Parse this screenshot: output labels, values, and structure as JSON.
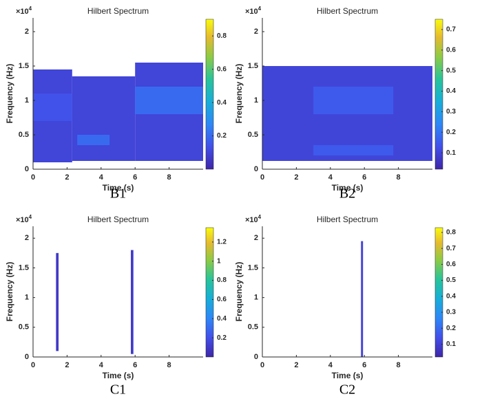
{
  "chart_data": [
    {
      "type": "spectrogram",
      "title": "Hilbert Spectrum",
      "panel_label": "B1",
      "xlabel": "Time (s)",
      "ylabel": "Frequency (Hz)",
      "y_multiplier": {
        "base": "×10",
        "exponent": "4"
      },
      "xlim": [
        0,
        10
      ],
      "xticks": [
        0,
        2,
        4,
        6,
        8
      ],
      "ylim": [
        0,
        2.2
      ],
      "yticks": [
        0,
        0.5,
        1,
        1.5,
        2
      ],
      "clim": [
        0,
        0.9
      ],
      "cticks": [
        0.2,
        0.4,
        0.6,
        0.8
      ],
      "colormap": "parula",
      "regions": [
        {
          "x": [
            0,
            2.3
          ],
          "y": [
            0.1,
            1.45
          ],
          "value": 0.1
        },
        {
          "x": [
            2.3,
            6
          ],
          "y": [
            0.12,
            1.35
          ],
          "value": 0.1
        },
        {
          "x": [
            6,
            10
          ],
          "y": [
            0.12,
            1.55
          ],
          "value": 0.1
        },
        {
          "x": [
            0,
            2.3
          ],
          "y": [
            0.7,
            1.1
          ],
          "value": 0.14
        },
        {
          "x": [
            6,
            10
          ],
          "y": [
            0.8,
            1.2
          ],
          "value": 0.2
        },
        {
          "x": [
            2.6,
            4.5
          ],
          "y": [
            0.35,
            0.5
          ],
          "value": 0.2
        }
      ]
    },
    {
      "type": "spectrogram",
      "title": "Hilbert Spectrum",
      "panel_label": "B2",
      "xlabel": "Time (s)",
      "ylabel": "Frequency (Hz)",
      "y_multiplier": {
        "base": "×10",
        "exponent": "4"
      },
      "xlim": [
        0,
        10
      ],
      "xticks": [
        0,
        2,
        4,
        6,
        8
      ],
      "ylim": [
        0,
        2.2
      ],
      "yticks": [
        0,
        0.5,
        1,
        1.5,
        2
      ],
      "clim": [
        0.02,
        0.75
      ],
      "cticks": [
        0.1,
        0.2,
        0.3,
        0.4,
        0.5,
        0.6,
        0.7
      ],
      "colormap": "parula",
      "regions": [
        {
          "x": [
            0,
            10
          ],
          "y": [
            0.12,
            1.5
          ],
          "value": 0.1
        },
        {
          "x": [
            3,
            7.7
          ],
          "y": [
            0.8,
            1.2
          ],
          "value": 0.15
        },
        {
          "x": [
            3,
            7.7
          ],
          "y": [
            0.2,
            0.35
          ],
          "value": 0.15
        }
      ]
    },
    {
      "type": "spectrogram",
      "title": "Hilbert Spectrum",
      "panel_label": "C1",
      "xlabel": "Time (s)",
      "ylabel": "Frequency (Hz)",
      "y_multiplier": {
        "base": "×10",
        "exponent": "4"
      },
      "xlim": [
        0,
        10
      ],
      "xticks": [
        0,
        2,
        4,
        6,
        8
      ],
      "ylim": [
        0,
        2.2
      ],
      "yticks": [
        0,
        0.5,
        1,
        1.5,
        2
      ],
      "clim": [
        0,
        1.35
      ],
      "cticks": [
        0.2,
        0.4,
        0.6,
        0.8,
        1,
        1.2
      ],
      "colormap": "parula",
      "regions": [
        {
          "x": [
            1.35,
            1.5
          ],
          "y": [
            0.1,
            1.75
          ],
          "value": 0.1
        },
        {
          "x": [
            5.75,
            5.9
          ],
          "y": [
            0.05,
            1.8
          ],
          "value": 0.1
        }
      ]
    },
    {
      "type": "spectrogram",
      "title": "Hilbert Spectrum",
      "panel_label": "C2",
      "xlabel": "Time (s)",
      "ylabel": "Frequency (Hz)",
      "y_multiplier": {
        "base": "×10",
        "exponent": "4"
      },
      "xlim": [
        0,
        10
      ],
      "xticks": [
        0,
        2,
        4,
        6,
        8
      ],
      "ylim": [
        0,
        2.2
      ],
      "yticks": [
        0,
        0.5,
        1,
        1.5,
        2
      ],
      "clim": [
        0.02,
        0.83
      ],
      "cticks": [
        0.1,
        0.2,
        0.3,
        0.4,
        0.5,
        0.6,
        0.7,
        0.8
      ],
      "colormap": "parula",
      "regions": [
        {
          "x": [
            5.8,
            5.92
          ],
          "y": [
            0,
            1.95
          ],
          "value": 0.1
        }
      ]
    }
  ]
}
